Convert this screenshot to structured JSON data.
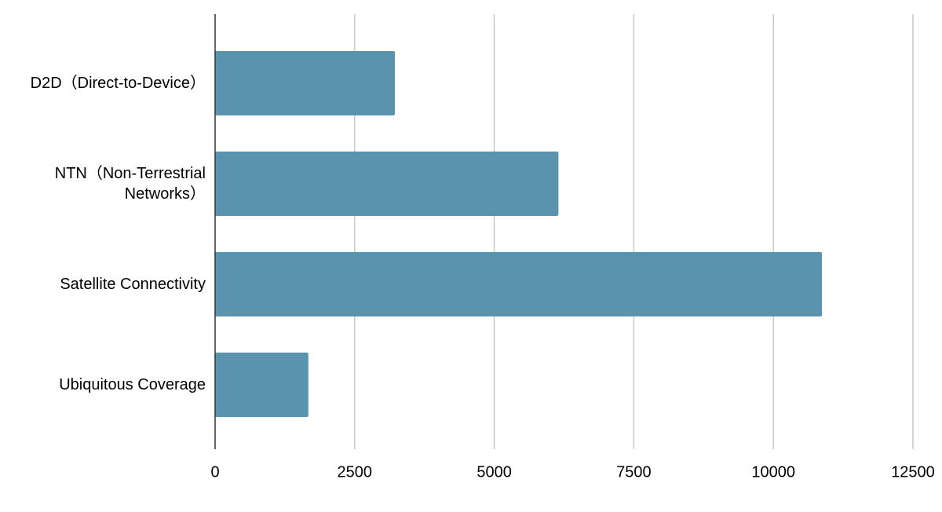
{
  "chart_data": {
    "type": "barh",
    "categories": [
      "D2D（Direct-to-Device）",
      "NTN（Non-Terrestrial Networks）",
      "Satellite Connectivity",
      "Ubiquitous Coverage"
    ],
    "values": [
      3220,
      6150,
      10870,
      1670
    ],
    "color": "#5a93ae",
    "xlim": [
      0,
      12500
    ],
    "xticks": [
      0,
      2500,
      5000,
      7500,
      10000,
      12500
    ],
    "grid": true
  }
}
